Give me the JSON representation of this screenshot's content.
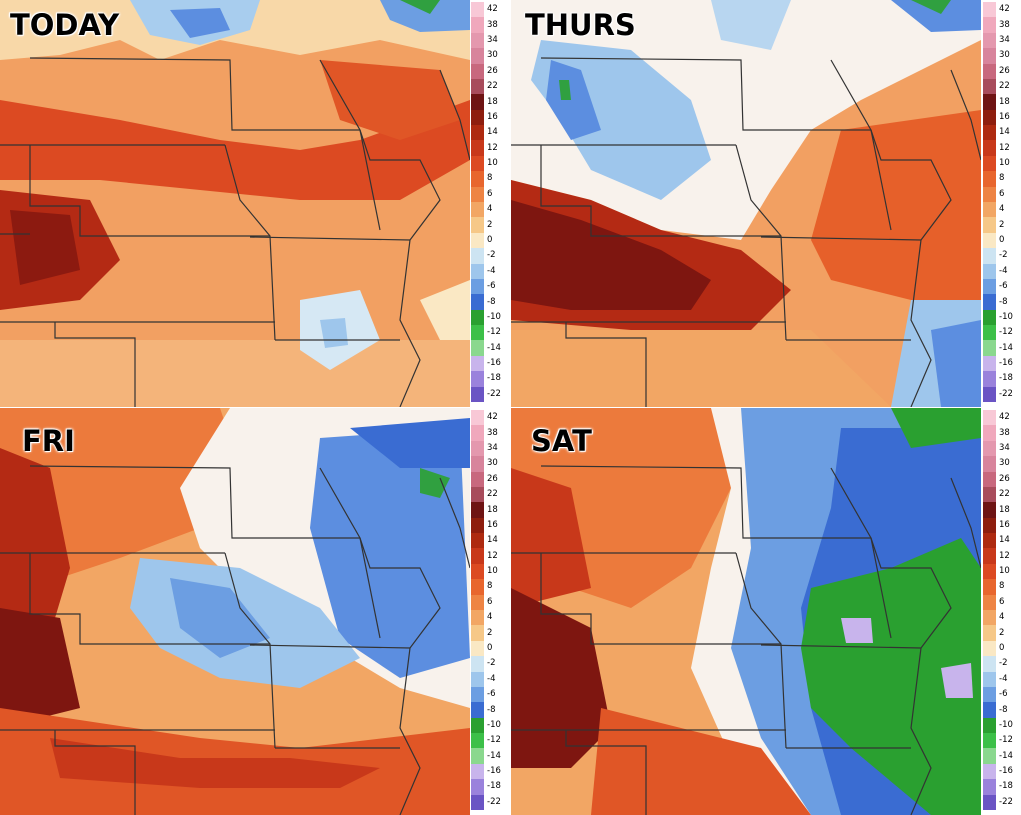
{
  "panels": [
    {
      "title": "TODAY"
    },
    {
      "title": "THURS"
    },
    {
      "title": "FRI"
    },
    {
      "title": "SAT"
    }
  ],
  "colorbar": {
    "labels": [
      "42",
      "38",
      "34",
      "30",
      "26",
      "22",
      "18",
      "16",
      "14",
      "12",
      "10",
      "8",
      "6",
      "4",
      "2",
      "0",
      "-2",
      "-4",
      "-6",
      "-8",
      "-10",
      "-12",
      "-14",
      "-16",
      "-18",
      "-22"
    ],
    "colors": [
      "#f8c8d6",
      "#f0a8bc",
      "#e498ae",
      "#d8849c",
      "#c8687e",
      "#a84c5c",
      "#6e1414",
      "#8e1e0e",
      "#ae2a10",
      "#c8381a",
      "#dc4a22",
      "#e8662e",
      "#ee8444",
      "#f2a664",
      "#f6c888",
      "#fae8c4",
      "#cde4f2",
      "#9ec6ec",
      "#6c9ee2",
      "#3a6cd2",
      "#2aa030",
      "#3cc048",
      "#8ad88e",
      "#c8b4ec",
      "#9a82dc",
      "#6a54c4"
    ]
  }
}
